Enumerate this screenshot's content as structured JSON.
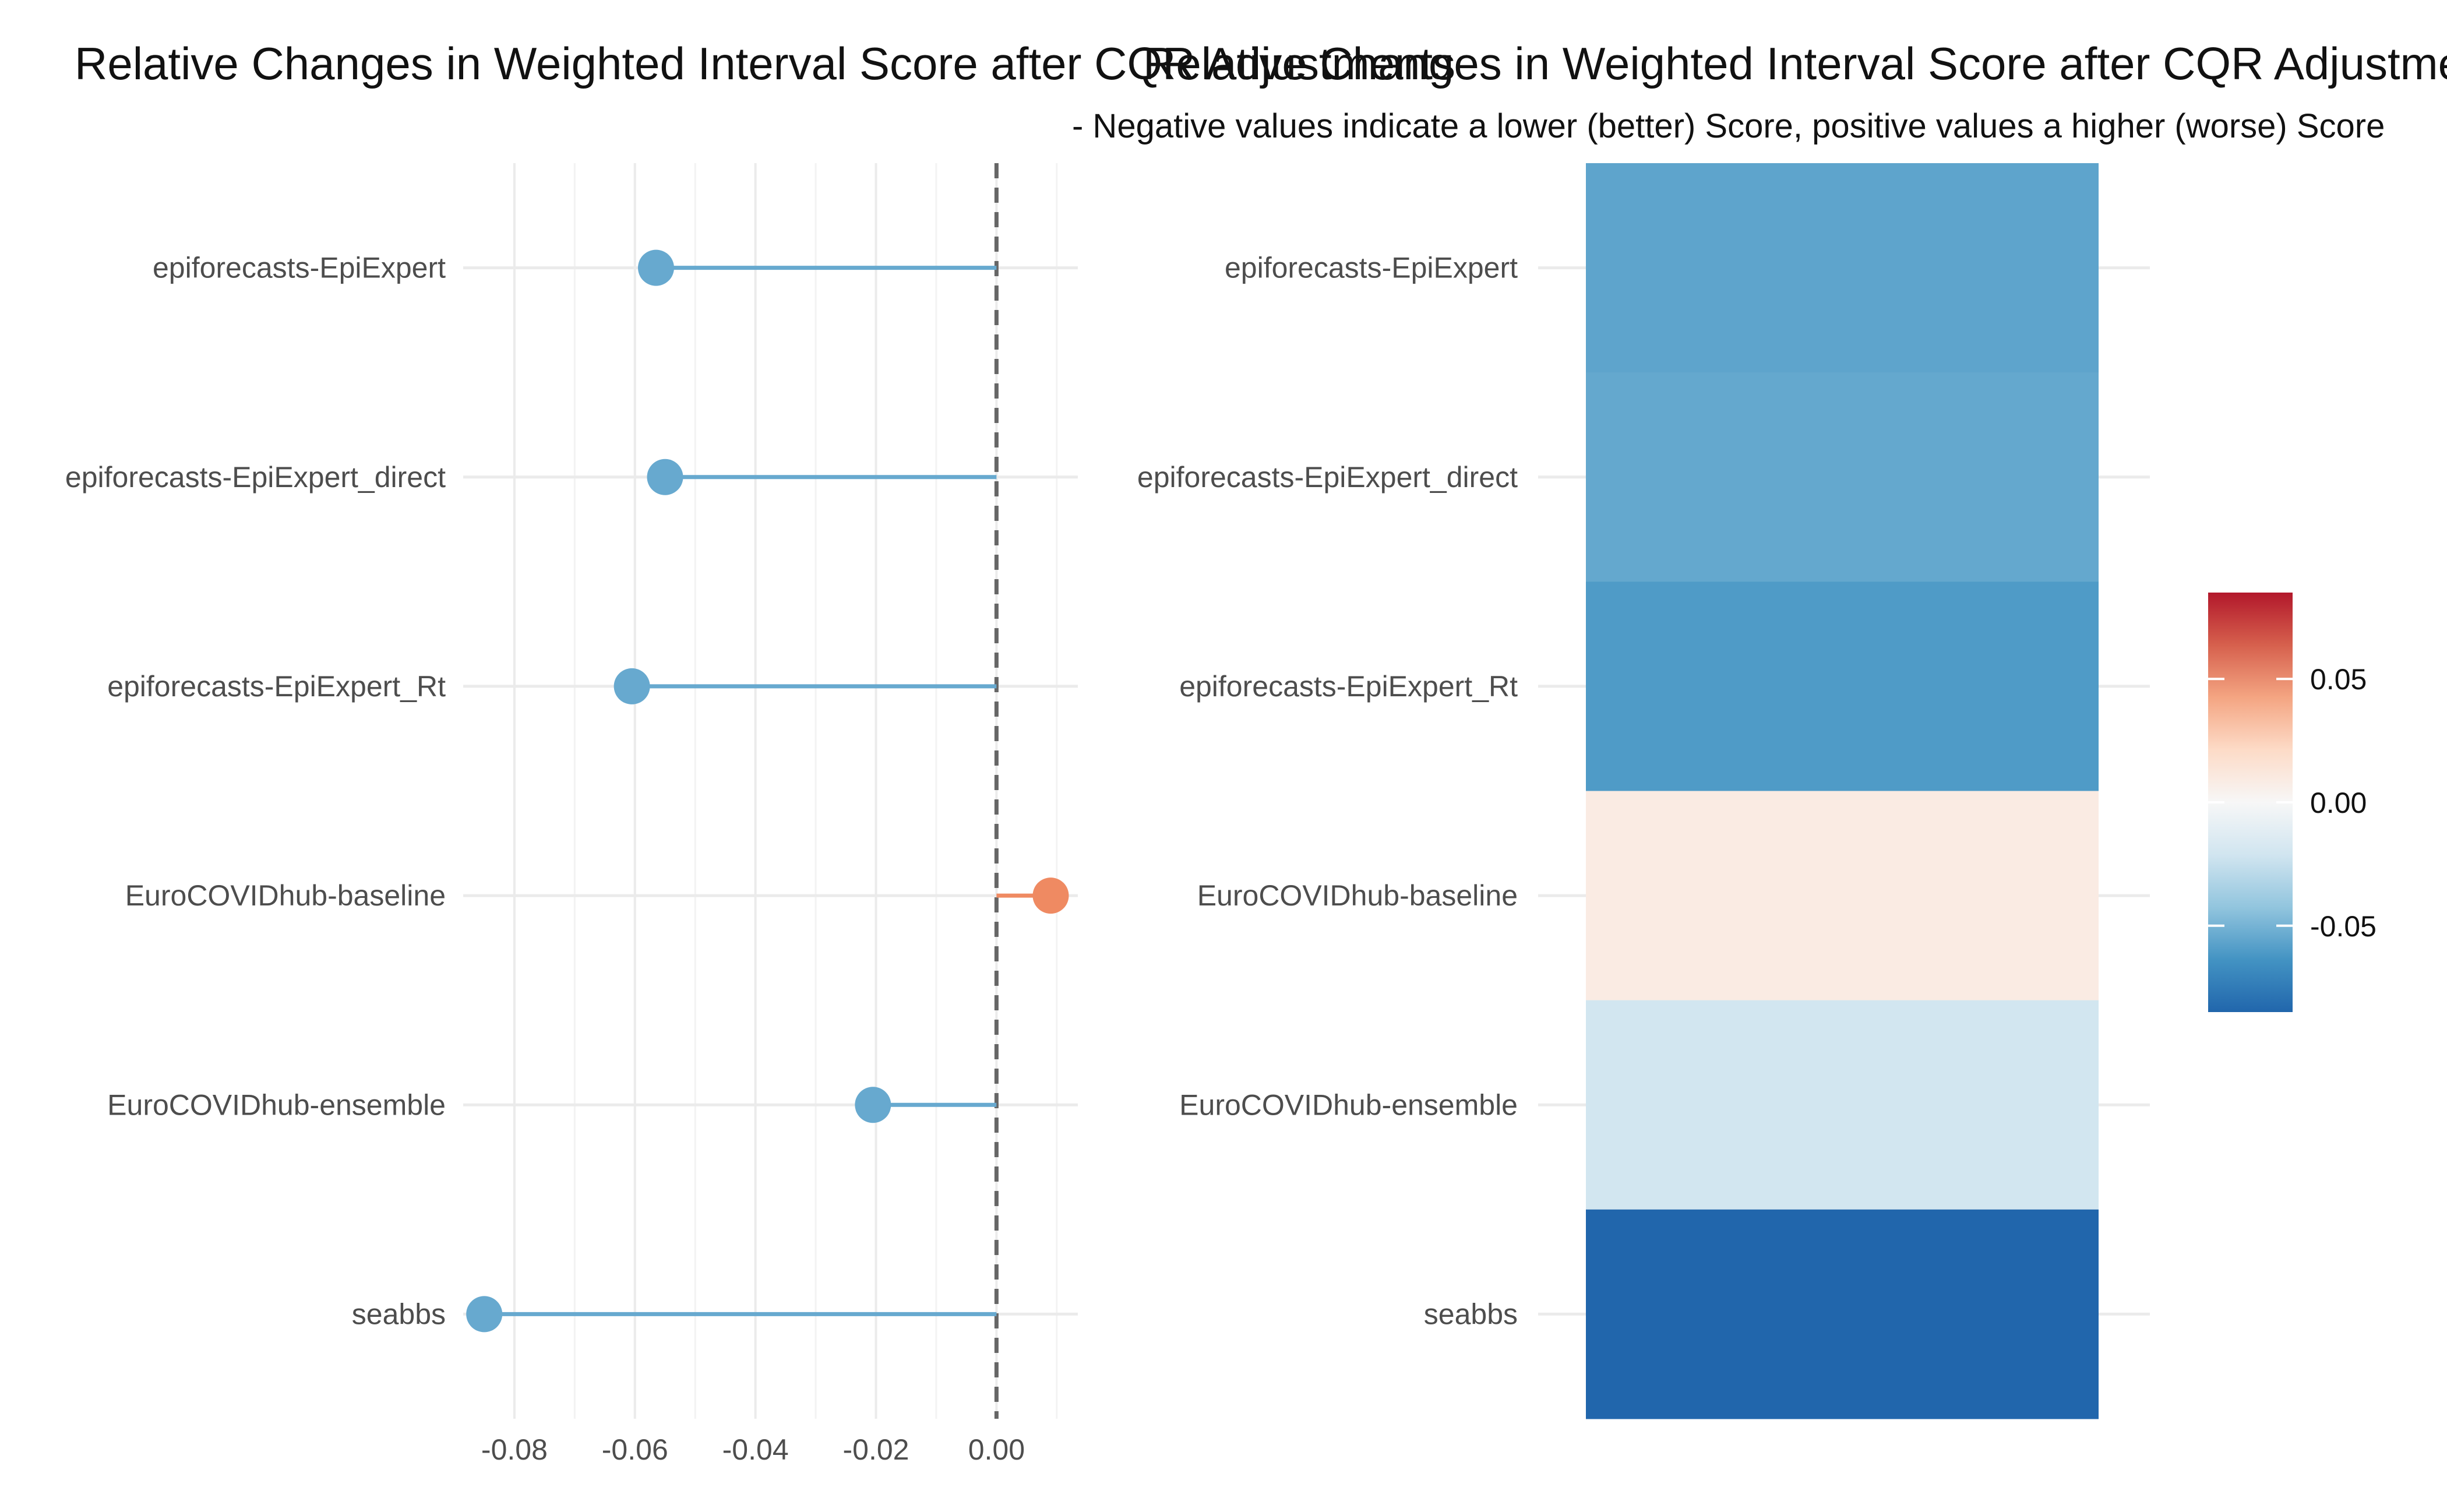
{
  "chart_data": [
    {
      "type": "lollipop",
      "title": "Relative Changes in Weighted Interval Score after CQR Adjustments",
      "categories": [
        "epiforecasts-EpiExpert",
        "epiforecasts-EpiExpert_direct",
        "epiforecasts-EpiExpert_Rt",
        "EuroCOVIDhub-baseline",
        "EuroCOVIDhub-ensemble",
        "seabbs"
      ],
      "values": [
        -0.0565,
        -0.055,
        -0.0605,
        0.009,
        -0.0205,
        -0.085
      ],
      "x_ticks": [
        "-0.08",
        "-0.06",
        "-0.04",
        "-0.02",
        "0.00"
      ],
      "xlim": [
        -0.0885,
        0.0135
      ],
      "reference_line": 0,
      "colors": {
        "negative": "#67a9cf",
        "positive": "#ef8a62",
        "reference": "#666666"
      },
      "grid": true
    },
    {
      "type": "heatmap",
      "title": "Relative Changes in Weighted Interval Score after CQR Adjustments",
      "subtitle": "- Negative values indicate a lower (better) Score, positive values a higher (worse) Score",
      "categories": [
        "epiforecasts-EpiExpert",
        "epiforecasts-EpiExpert_direct",
        "epiforecasts-EpiExpert_Rt",
        "EuroCOVIDhub-baseline",
        "EuroCOVIDhub-ensemble",
        "seabbs"
      ],
      "values": [
        -0.0565,
        -0.055,
        -0.0605,
        0.009,
        -0.0205,
        -0.085
      ],
      "colorbar": {
        "range": [
          -0.085,
          0.085
        ],
        "ticks": [
          0.05,
          0.0,
          -0.05
        ],
        "tick_labels": [
          "0.05",
          "0.00",
          "-0.05"
        ],
        "colors": [
          "#2166ac",
          "#4393c3",
          "#92c5de",
          "#d1e5f0",
          "#f7f7f7",
          "#fddbc7",
          "#f4a582",
          "#d6604d",
          "#b2182b"
        ]
      },
      "legend_position": "right",
      "grid": true
    }
  ]
}
